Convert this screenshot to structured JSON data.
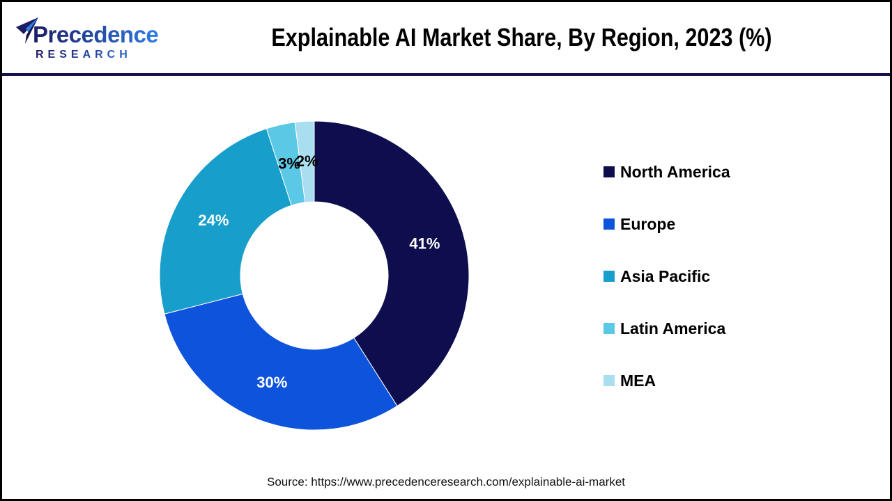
{
  "header": {
    "logo": {
      "line1": "Precedence",
      "line2": "RESEARCH"
    },
    "title": "Explainable AI Market Share, By Region, 2023 (%)"
  },
  "chart_data": {
    "type": "pie",
    "subtype": "donut",
    "title": "Explainable AI Market Share, By Region, 2023 (%)",
    "start_angle_deg": 0,
    "direction": "clockwise",
    "legend_position": "right",
    "categories": [
      "North America",
      "Europe",
      "Asia Pacific",
      "Latin America",
      "MEA"
    ],
    "values": [
      41,
      30,
      24,
      3,
      2
    ],
    "slices": [
      {
        "name": "North America",
        "value": 41,
        "label": "41%",
        "color": "#0E0E4F",
        "label_color": "#FFFFFF"
      },
      {
        "name": "Europe",
        "value": 30,
        "label": "30%",
        "color": "#0E53DC",
        "label_color": "#FFFFFF"
      },
      {
        "name": "Asia Pacific",
        "value": 24,
        "label": "24%",
        "color": "#189ECB",
        "label_color": "#FFFFFF"
      },
      {
        "name": "Latin America",
        "value": 3,
        "label": "3%",
        "color": "#5BC8E6",
        "label_color": "#000000"
      },
      {
        "name": "MEA",
        "value": 2,
        "label": "2%",
        "color": "#A9DEF0",
        "label_color": "#000000"
      }
    ]
  },
  "footer": {
    "source": "Source: https://www.precedenceresearch.com/explainable-ai-market"
  },
  "colors": {
    "frame_border": "#000000",
    "separator": "#14144A",
    "background": "#FFFFFF",
    "title_text": "#000000",
    "logo_gradient_start": "#1C1C66",
    "logo_gradient_end": "#2E7CE6"
  }
}
